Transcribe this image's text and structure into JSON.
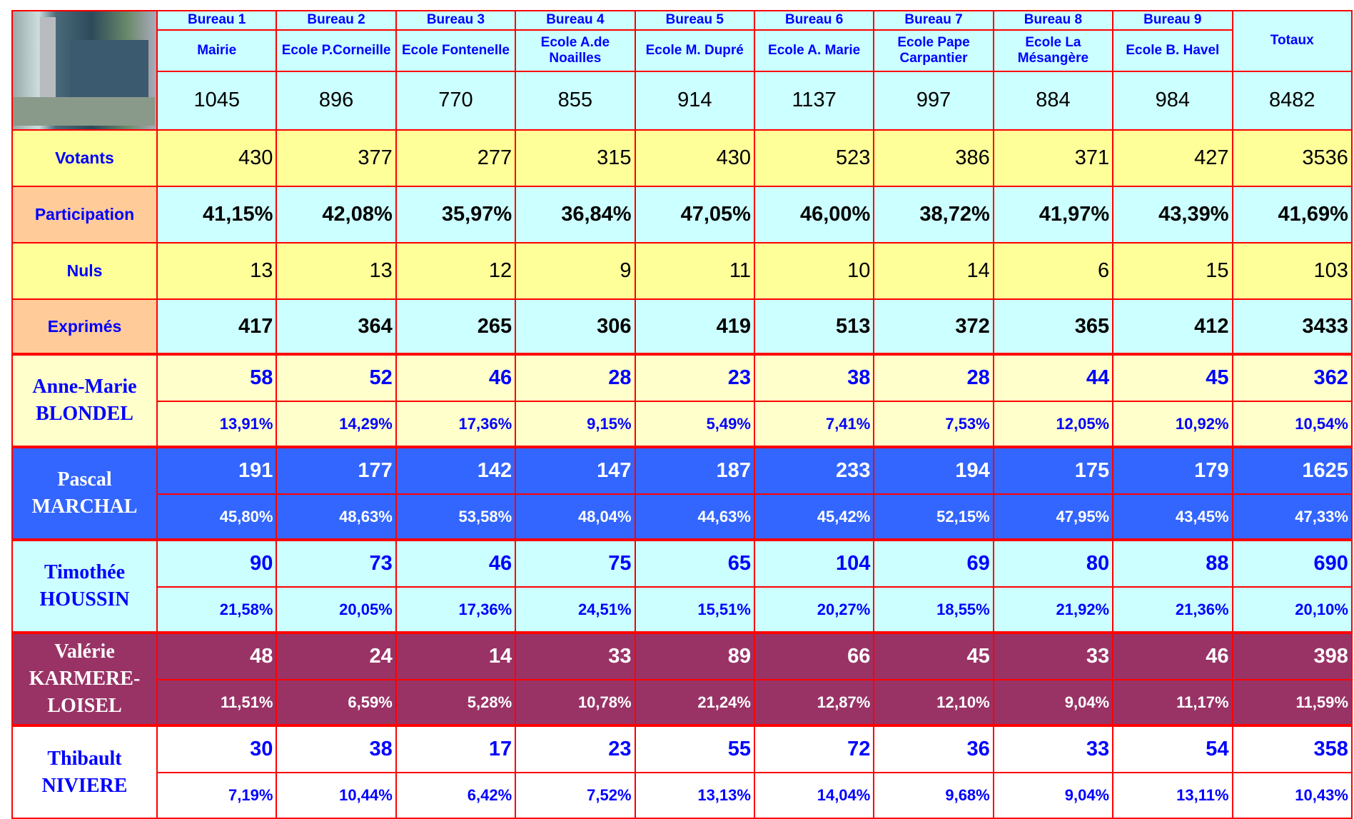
{
  "header": {
    "bureaus": [
      {
        "number": "Bureau 1",
        "name": "Mairie"
      },
      {
        "number": "Bureau 2",
        "name": "Ecole P.Corneille"
      },
      {
        "number": "Bureau 3",
        "name": "Ecole Fontenelle"
      },
      {
        "number": "Bureau 4",
        "name": "Ecole A.de Noailles"
      },
      {
        "number": "Bureau 5",
        "name": "Ecole M. Dupré"
      },
      {
        "number": "Bureau 6",
        "name": "Ecole A. Marie"
      },
      {
        "number": "Bureau 7",
        "name": "Ecole Pape Carpantier"
      },
      {
        "number": "Bureau 8",
        "name": "Ecole La Mésangère"
      },
      {
        "number": "Bureau 9",
        "name": "Ecole B. Havel"
      }
    ],
    "totals_label": "Totaux"
  },
  "inscrits": [
    "1045",
    "896",
    "770",
    "855",
    "914",
    "1137",
    "997",
    "884",
    "984",
    "8482"
  ],
  "rows": [
    {
      "label": "Votants",
      "values": [
        "430",
        "377",
        "277",
        "315",
        "430",
        "523",
        "386",
        "371",
        "427",
        "3536"
      ]
    },
    {
      "label": "Participation",
      "values": [
        "41,15%",
        "42,08%",
        "35,97%",
        "36,84%",
        "47,05%",
        "46,00%",
        "38,72%",
        "41,97%",
        "43,39%",
        "41,69%"
      ]
    },
    {
      "label": "Nuls",
      "values": [
        "13",
        "13",
        "12",
        "9",
        "11",
        "10",
        "14",
        "6",
        "15",
        "103"
      ]
    },
    {
      "label": "Exprimés",
      "values": [
        "417",
        "364",
        "265",
        "306",
        "419",
        "513",
        "372",
        "365",
        "412",
        "3433"
      ]
    }
  ],
  "candidates": [
    {
      "name": "Anne-Marie BLONDEL",
      "votes": [
        "58",
        "52",
        "46",
        "28",
        "23",
        "38",
        "28",
        "44",
        "45",
        "362"
      ],
      "percents": [
        "13,91%",
        "14,29%",
        "17,36%",
        "9,15%",
        "5,49%",
        "7,41%",
        "7,53%",
        "12,05%",
        "10,92%",
        "10,54%"
      ]
    },
    {
      "name": "Pascal MARCHAL",
      "votes": [
        "191",
        "177",
        "142",
        "147",
        "187",
        "233",
        "194",
        "175",
        "179",
        "1625"
      ],
      "percents": [
        "45,80%",
        "48,63%",
        "53,58%",
        "48,04%",
        "44,63%",
        "45,42%",
        "52,15%",
        "47,95%",
        "43,45%",
        "47,33%"
      ]
    },
    {
      "name": "Timothée HOUSSIN",
      "votes": [
        "90",
        "73",
        "46",
        "75",
        "65",
        "104",
        "69",
        "80",
        "88",
        "690"
      ],
      "percents": [
        "21,58%",
        "20,05%",
        "17,36%",
        "24,51%",
        "15,51%",
        "20,27%",
        "18,55%",
        "21,92%",
        "21,36%",
        "20,10%"
      ]
    },
    {
      "name": "Valérie KARMERE-LOISEL",
      "votes": [
        "48",
        "24",
        "14",
        "33",
        "89",
        "66",
        "45",
        "33",
        "46",
        "398"
      ],
      "percents": [
        "11,51%",
        "6,59%",
        "5,28%",
        "10,78%",
        "21,24%",
        "12,87%",
        "12,10%",
        "9,04%",
        "11,17%",
        "11,59%"
      ]
    },
    {
      "name": "Thibault NIVIERE",
      "votes": [
        "30",
        "38",
        "17",
        "23",
        "55",
        "72",
        "36",
        "33",
        "54",
        "358"
      ],
      "percents": [
        "7,19%",
        "10,44%",
        "6,42%",
        "7,52%",
        "13,13%",
        "14,04%",
        "9,68%",
        "9,04%",
        "13,11%",
        "10,43%"
      ]
    }
  ]
}
